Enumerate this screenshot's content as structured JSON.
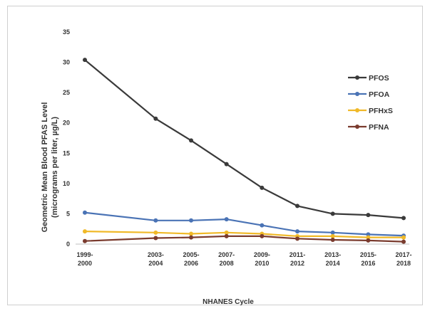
{
  "chart_data": {
    "type": "line",
    "title": "",
    "ylabel": "Geometric Mean Blood PFAS Level",
    "ylabel_units": "(micrograms per liter, µg/L)",
    "xlabel": "NHANES Cycle",
    "ylim": [
      0,
      35
    ],
    "yticks": [
      0,
      5,
      10,
      15,
      20,
      25,
      30,
      35
    ],
    "grid": false,
    "legend_position": "right",
    "categories": [
      [
        "1999-",
        "2000"
      ],
      [
        "2003-",
        "2004"
      ],
      [
        "2005-",
        "2006"
      ],
      [
        "2007-",
        "2008"
      ],
      [
        "2009-",
        "2010"
      ],
      [
        "2011-",
        "2012"
      ],
      [
        "2013-",
        "2014"
      ],
      [
        "2015-",
        "2016"
      ],
      [
        "2017-",
        "2018"
      ]
    ],
    "x": [
      1999.5,
      2003.5,
      2005.5,
      2007.5,
      2009.5,
      2011.5,
      2013.5,
      2015.5,
      2017.5
    ],
    "series": [
      {
        "name": "PFOS",
        "color": "#3a3a3a",
        "values": [
          30.4,
          20.7,
          17.1,
          13.2,
          9.3,
          6.3,
          5.0,
          4.8,
          4.3
        ]
      },
      {
        "name": "PFOA",
        "color": "#4a73b5",
        "values": [
          5.2,
          3.9,
          3.9,
          4.1,
          3.1,
          2.1,
          1.9,
          1.6,
          1.4
        ]
      },
      {
        "name": "PFHxS",
        "color": "#f0b928",
        "values": [
          2.1,
          1.9,
          1.7,
          1.9,
          1.7,
          1.3,
          1.3,
          1.1,
          1.1
        ]
      },
      {
        "name": "PFNA",
        "color": "#7a3b2e",
        "values": [
          0.5,
          1.0,
          1.1,
          1.3,
          1.3,
          0.9,
          0.7,
          0.6,
          0.4
        ]
      }
    ]
  }
}
